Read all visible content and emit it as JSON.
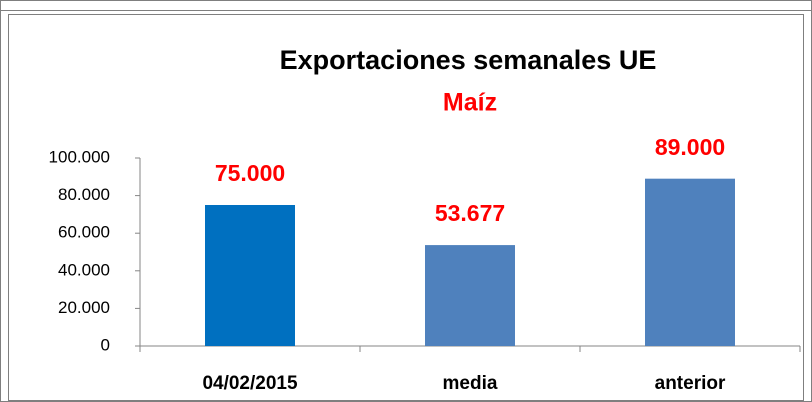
{
  "chart_data": {
    "type": "bar",
    "title": "Exportaciones semanales UE",
    "subtitle": "Maíz",
    "categories": [
      "04/02/2015",
      "media",
      "anterior"
    ],
    "values": [
      75000,
      53677,
      89000
    ],
    "value_labels": [
      "75.000",
      "53.677",
      "89.000"
    ],
    "colors": [
      "#0070c0",
      "#4f81bd",
      "#4f81bd"
    ],
    "ylim": [
      0,
      100000
    ],
    "yticks": [
      {
        "value": 0,
        "label": "0"
      },
      {
        "value": 20000,
        "label": "20.000"
      },
      {
        "value": 40000,
        "label": "40.000"
      },
      {
        "value": 60000,
        "label": "60.000"
      },
      {
        "value": 80000,
        "label": "80.000"
      },
      {
        "value": 100000,
        "label": "100.000"
      }
    ],
    "grid": false
  }
}
